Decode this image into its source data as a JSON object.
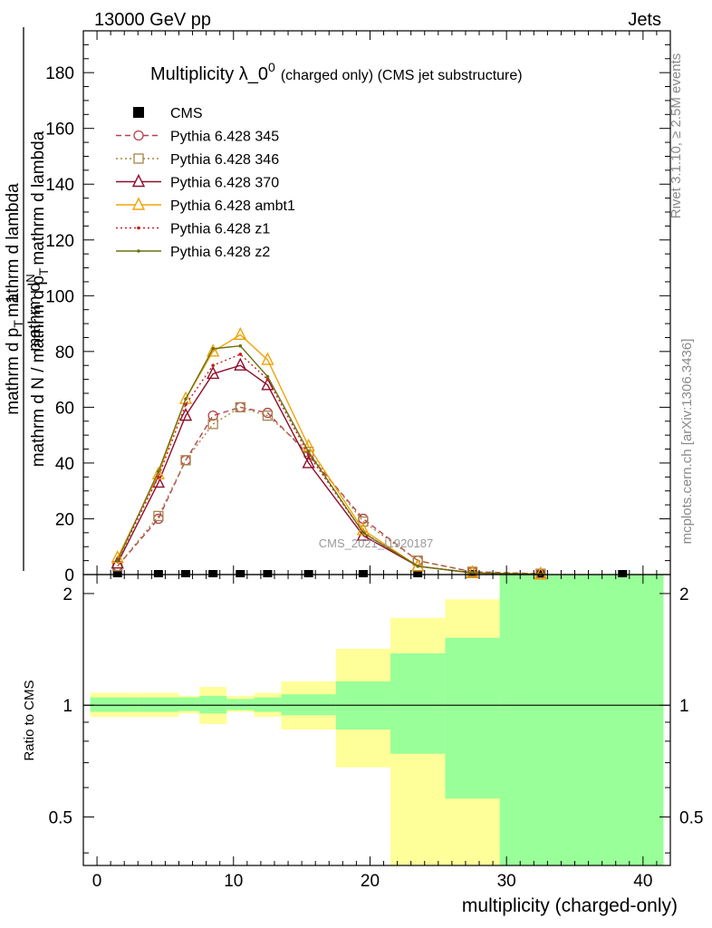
{
  "header": {
    "left": "13000 GeV pp",
    "right": "Jets"
  },
  "side_text": {
    "rivet": "Rivet 3.1.10, ≥ 2.5M events",
    "mcplots": "mcplots.cern.ch [arXiv:1306.3436]"
  },
  "watermark": "CMS_2021_I1920187",
  "chart_data": [
    {
      "type": "line",
      "title_main": "Multiplicity λ_0",
      "title_sup": "0",
      "title_rest": "(charged only) (CMS jet substructure)",
      "ylabel_num": "1",
      "ylabel_main": "mathrm d N / mathrm d p",
      "ylabel_sub": "T",
      "ylabel_tail": "mathrm d lambda",
      "ylabel_num_main": "mathrm d",
      "ylabel_num_sub": "T",
      "ylabel_num_tail": "mathrm d lambda",
      "ylabel_num_top": "mathrm d",
      "ylabel_num_top2": "N",
      "ylabel_num_mid": "mathrm d p",
      "xlim": [
        -1,
        42
      ],
      "ylim": [
        0,
        195
      ],
      "yticks": [
        0,
        20,
        40,
        60,
        80,
        100,
        120,
        140,
        160,
        180
      ],
      "xticks": [
        0,
        10,
        20,
        30,
        40
      ],
      "grid": false,
      "legend_position": "top-left",
      "series": [
        {
          "name": "CMS",
          "color": "#000000",
          "style": "marker",
          "marker": "square",
          "x": [
            1.5,
            4.5,
            6.5,
            8.5,
            10.5,
            12.5,
            15.5,
            19.5,
            23.5,
            27.5,
            32.5,
            38.5
          ],
          "y": [
            0,
            0,
            0,
            0,
            0,
            0,
            0,
            0,
            0,
            0,
            0,
            0
          ]
        },
        {
          "name": "Pythia 6.428 345",
          "color": "#b5414a",
          "style": "dashed",
          "marker": "circle",
          "x": [
            1.5,
            4.5,
            6.5,
            8.5,
            10.5,
            12.5,
            15.5,
            19.5,
            23.5,
            27.5,
            32.5
          ],
          "y": [
            3,
            20,
            41,
            57,
            60,
            58,
            43,
            20,
            5,
            1,
            0.3
          ]
        },
        {
          "name": "Pythia 6.428 346",
          "color": "#a68448",
          "style": "dotted",
          "marker": "square-open",
          "x": [
            1.5,
            4.5,
            6.5,
            8.5,
            10.5,
            12.5,
            15.5,
            19.5,
            23.5,
            27.5,
            32.5
          ],
          "y": [
            3,
            21,
            41,
            54,
            60,
            57,
            44,
            19,
            5,
            1,
            0.3
          ]
        },
        {
          "name": "Pythia 6.428 370",
          "color": "#8f0d2a",
          "style": "solid",
          "marker": "triangle-open",
          "x": [
            1.5,
            4.5,
            6.5,
            8.5,
            10.5,
            12.5,
            15.5,
            19.5,
            23.5,
            27.5,
            32.5
          ],
          "y": [
            4,
            33,
            57,
            72,
            75,
            68,
            40,
            14,
            3,
            0.6,
            0.1
          ]
        },
        {
          "name": "Pythia 6.428 ambt1",
          "color": "#f0a30a",
          "style": "solid",
          "marker": "triangle-open",
          "x": [
            1.5,
            4.5,
            6.5,
            8.5,
            10.5,
            12.5,
            15.5,
            19.5,
            23.5,
            27.5,
            32.5
          ],
          "y": [
            6,
            36,
            63,
            80,
            86,
            77,
            46,
            16,
            3,
            0.6,
            0.1
          ]
        },
        {
          "name": "Pythia 6.428 z1",
          "color": "#c81e1e",
          "style": "dotted",
          "marker": "dot",
          "x": [
            1.5,
            4.5,
            6.5,
            8.5,
            10.5,
            12.5,
            15.5,
            19.5,
            23.5,
            27.5,
            32.5
          ],
          "y": [
            5,
            35,
            61,
            75,
            79,
            70,
            43,
            15,
            3,
            0.6,
            0.1
          ]
        },
        {
          "name": "Pythia 6.428 z2",
          "color": "#6b7012",
          "style": "solid",
          "marker": "dot",
          "x": [
            1.5,
            4.5,
            6.5,
            8.5,
            10.5,
            12.5,
            15.5,
            19.5,
            23.5,
            27.5,
            32.5
          ],
          "y": [
            5,
            37,
            63,
            81,
            82,
            71,
            44,
            15,
            3,
            0.6,
            0.1
          ]
        }
      ]
    },
    {
      "type": "area",
      "ylabel": "Ratio to CMS",
      "xlabel": "multiplicity (charged-only)",
      "xlim": [
        -1,
        42
      ],
      "ylim": [
        0.37,
        2.25
      ],
      "yticks": [
        0.5,
        1,
        2
      ],
      "xticks": [
        0,
        10,
        20,
        30,
        40
      ],
      "reference": 1,
      "bins": [
        {
          "x0": -0.5,
          "x1": 3,
          "green": [
            0.96,
            1.05
          ],
          "yellow": [
            0.93,
            1.08
          ]
        },
        {
          "x0": 3,
          "x1": 6,
          "green": [
            0.96,
            1.05
          ],
          "yellow": [
            0.93,
            1.08
          ]
        },
        {
          "x0": 6,
          "x1": 7.5,
          "green": [
            0.965,
            1.05
          ],
          "yellow": [
            0.95,
            1.06
          ]
        },
        {
          "x0": 7.5,
          "x1": 9.5,
          "green": [
            0.95,
            1.06
          ],
          "yellow": [
            0.89,
            1.12
          ]
        },
        {
          "x0": 9.5,
          "x1": 11.5,
          "green": [
            0.97,
            1.04
          ],
          "yellow": [
            0.96,
            1.06
          ]
        },
        {
          "x0": 11.5,
          "x1": 13.5,
          "green": [
            0.96,
            1.05
          ],
          "yellow": [
            0.93,
            1.08
          ]
        },
        {
          "x0": 13.5,
          "x1": 17.5,
          "green": [
            0.94,
            1.07
          ],
          "yellow": [
            0.86,
            1.16
          ]
        },
        {
          "x0": 17.5,
          "x1": 21.5,
          "green": [
            0.86,
            1.16
          ],
          "yellow": [
            0.68,
            1.42
          ]
        },
        {
          "x0": 21.5,
          "x1": 25.5,
          "green": [
            0.74,
            1.38
          ],
          "yellow": [
            0.37,
            1.72
          ]
        },
        {
          "x0": 25.5,
          "x1": 29.5,
          "green": [
            0.56,
            1.52
          ],
          "yellow": [
            0.37,
            1.93
          ]
        },
        {
          "x0": 29.5,
          "x1": 41.5,
          "green": [
            0.37,
            2.25
          ],
          "yellow": [
            0.37,
            2.25
          ]
        }
      ]
    }
  ]
}
